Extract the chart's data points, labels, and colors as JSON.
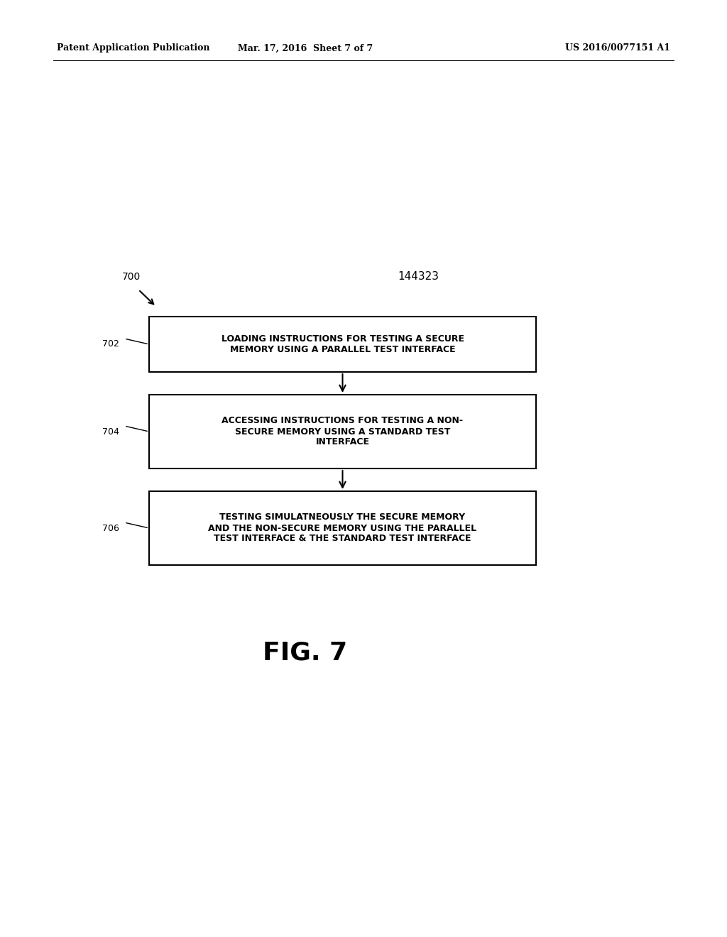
{
  "bg_color": "#ffffff",
  "header_left": "Patent Application Publication",
  "header_mid": "Mar. 17, 2016  Sheet 7 of 7",
  "header_right": "US 2016/0077151 A1",
  "ref_number": "700",
  "doc_number": "144323",
  "fig_label": "FIG. 7",
  "box1_text": "LOADING INSTRUCTIONS FOR TESTING A SECURE\nMEMORY USING A PARALLEL TEST INTERFACE",
  "box2_text": "ACCESSING INSTRUCTIONS FOR TESTING A NON-\nSECURE MEMORY USING A STANDARD TEST\nINTERFACE",
  "box3_text": "TESTING SIMULATNEOUSLY THE SECURE MEMORY\nAND THE NON-SECURE MEMORY USING THE PARALLEL\nTEST INTERFACE & THE STANDARD TEST INTERFACE",
  "label1": "702",
  "label2": "704",
  "label3": "706"
}
